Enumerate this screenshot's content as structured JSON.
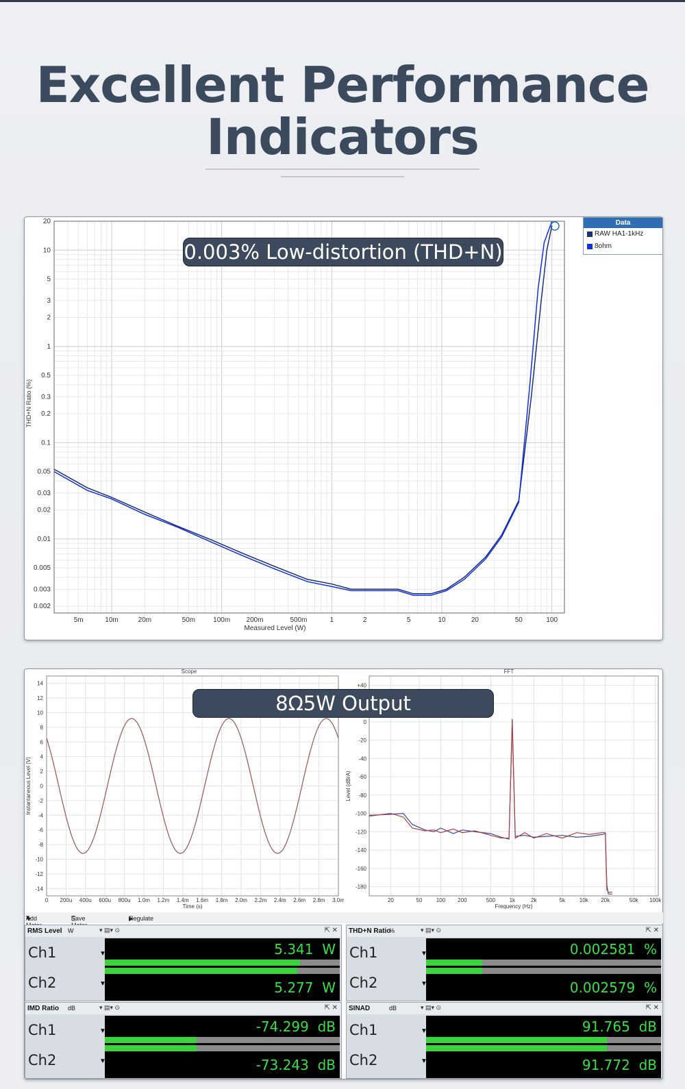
{
  "header": {
    "title_line1": "Excellent Performance",
    "title_line2": "Indicators"
  },
  "thd_panel": {
    "pill": "0.003% Low-distortion (THD+N)",
    "legend": {
      "title": "Data",
      "items": [
        {
          "label": "RAW HA1-1kHz",
          "color": "#1a2e7a"
        },
        {
          "label": "8ohm",
          "color": "#1030e0"
        }
      ]
    }
  },
  "scope_panel": {
    "pill": "8Ω5W Output"
  },
  "toolbar": {
    "add_meter": "Add Meter",
    "save_meter_data": "Save Meter Data",
    "regulate": "Regulate"
  },
  "meters": [
    {
      "title": "RMS Level",
      "unit": "W",
      "ch1_label": "Ch1",
      "ch2_label": "Ch2",
      "ch1_value": "5.341",
      "ch1_unit": "W",
      "ch2_value": "5.277",
      "ch2_unit": "W",
      "ch1_level": 0.83,
      "ch2_level": 0.82
    },
    {
      "title": "THD+N Ratio",
      "unit": "%",
      "ch1_label": "Ch1",
      "ch2_label": "Ch2",
      "ch1_value": "0.002581",
      "ch1_unit": "%",
      "ch2_value": "0.002579",
      "ch2_unit": "%",
      "ch1_level": 0.24,
      "ch2_level": 0.24
    },
    {
      "title": "IMD Ratio",
      "unit": "dB",
      "ch1_label": "Ch1",
      "ch2_label": "Ch2",
      "ch1_value": "-74.299",
      "ch1_unit": "dB",
      "ch2_value": "-73.243",
      "ch2_unit": "dB",
      "ch1_level": 0.39,
      "ch2_level": 0.39
    },
    {
      "title": "SINAD",
      "unit": "dB",
      "ch1_label": "Ch1",
      "ch2_label": "Ch2",
      "ch1_value": "91.765",
      "ch1_unit": "dB",
      "ch2_value": "91.772",
      "ch2_unit": "dB",
      "ch1_level": 0.77,
      "ch2_level": 0.77
    }
  ],
  "chart_data": [
    {
      "type": "line",
      "xlabel": "Measured Level (W)",
      "ylabel": "THD+N Ratio (%)",
      "x_scale": "log",
      "y_scale": "log",
      "xlim": [
        0.003,
        130
      ],
      "ylim": [
        0.0017,
        20
      ],
      "x_ticks": [
        {
          "v": 0.005,
          "label": "5m"
        },
        {
          "v": 0.01,
          "label": "10m"
        },
        {
          "v": 0.02,
          "label": "20m"
        },
        {
          "v": 0.05,
          "label": "50m"
        },
        {
          "v": 0.1,
          "label": "100m"
        },
        {
          "v": 0.2,
          "label": "200m"
        },
        {
          "v": 0.5,
          "label": "500m"
        },
        {
          "v": 1,
          "label": "1"
        },
        {
          "v": 2,
          "label": "2"
        },
        {
          "v": 5,
          "label": "5"
        },
        {
          "v": 10,
          "label": "10"
        },
        {
          "v": 20,
          "label": "20"
        },
        {
          "v": 50,
          "label": "50"
        },
        {
          "v": 100,
          "label": "100"
        }
      ],
      "y_ticks": [
        {
          "v": 20,
          "label": "20"
        },
        {
          "v": 10,
          "label": "10"
        },
        {
          "v": 5,
          "label": "5"
        },
        {
          "v": 3,
          "label": "3"
        },
        {
          "v": 2,
          "label": "2"
        },
        {
          "v": 1,
          "label": "1"
        },
        {
          "v": 0.5,
          "label": "0.5"
        },
        {
          "v": 0.3,
          "label": "0.3"
        },
        {
          "v": 0.2,
          "label": "0.2"
        },
        {
          "v": 0.1,
          "label": "0.1"
        },
        {
          "v": 0.05,
          "label": "0.05"
        },
        {
          "v": 0.03,
          "label": "0.03"
        },
        {
          "v": 0.02,
          "label": "0.02"
        },
        {
          "v": 0.01,
          "label": "0.01"
        },
        {
          "v": 0.005,
          "label": "0.005"
        },
        {
          "v": 0.003,
          "label": "0.003"
        },
        {
          "v": 0.002,
          "label": "0.002"
        }
      ],
      "grid": true,
      "legend_position": "top-right",
      "series": [
        {
          "name": "RAW HA1-1kHz",
          "color": "#1a2e7a",
          "x": [
            0.003,
            0.006,
            0.01,
            0.02,
            0.04,
            0.08,
            0.15,
            0.3,
            0.6,
            1.0,
            1.5,
            2.5,
            4.0,
            5.5,
            8.0,
            11,
            16,
            25,
            35,
            50,
            65,
            80,
            90,
            100
          ],
          "y": [
            0.053,
            0.034,
            0.027,
            0.019,
            0.0135,
            0.0098,
            0.0072,
            0.0052,
            0.0038,
            0.0034,
            0.003,
            0.003,
            0.003,
            0.0027,
            0.0027,
            0.003,
            0.004,
            0.0065,
            0.011,
            0.025,
            0.3,
            3.0,
            10,
            18
          ]
        },
        {
          "name": "8ohm",
          "color": "#1030e0",
          "x": [
            0.003,
            0.006,
            0.01,
            0.02,
            0.04,
            0.08,
            0.15,
            0.3,
            0.6,
            1.0,
            1.5,
            2.5,
            4.0,
            5.5,
            8.0,
            11,
            16,
            25,
            35,
            50,
            63,
            75,
            85,
            100
          ],
          "y": [
            0.05,
            0.032,
            0.026,
            0.018,
            0.0132,
            0.0093,
            0.0068,
            0.0049,
            0.0036,
            0.0032,
            0.0029,
            0.0029,
            0.0029,
            0.0026,
            0.0026,
            0.0029,
            0.0038,
            0.0062,
            0.0105,
            0.024,
            0.4,
            4.0,
            12,
            20
          ]
        }
      ]
    },
    {
      "type": "line",
      "title": "Scope",
      "xlabel": "Time (s)",
      "ylabel": "Instantaneous Level (V)",
      "xlim": [
        0,
        0.003
      ],
      "ylim": [
        -15,
        15
      ],
      "x_ticks": [
        {
          "v": 0,
          "label": "0"
        },
        {
          "v": 0.0002,
          "label": "200u"
        },
        {
          "v": 0.0004,
          "label": "400u"
        },
        {
          "v": 0.0006,
          "label": "600u"
        },
        {
          "v": 0.0008,
          "label": "800u"
        },
        {
          "v": 0.001,
          "label": "1.0m"
        },
        {
          "v": 0.0012,
          "label": "1.2m"
        },
        {
          "v": 0.0014,
          "label": "1.4m"
        },
        {
          "v": 0.0016,
          "label": "1.6m"
        },
        {
          "v": 0.0018,
          "label": "1.8m"
        },
        {
          "v": 0.002,
          "label": "2.0m"
        },
        {
          "v": 0.0022,
          "label": "2.2m"
        },
        {
          "v": 0.0024,
          "label": "2.4m"
        },
        {
          "v": 0.0026,
          "label": "2.6m"
        },
        {
          "v": 0.0028,
          "label": "2.8m"
        },
        {
          "v": 0.003,
          "label": "3.0m"
        }
      ],
      "y_ticks": [
        {
          "v": 14,
          "label": "14"
        },
        {
          "v": 12,
          "label": "12"
        },
        {
          "v": 10,
          "label": "10"
        },
        {
          "v": 8,
          "label": "8"
        },
        {
          "v": 6,
          "label": "6"
        },
        {
          "v": 4,
          "label": "4"
        },
        {
          "v": 2,
          "label": "2"
        },
        {
          "v": 0,
          "label": "0"
        },
        {
          "v": -2,
          "label": "-2"
        },
        {
          "v": -4,
          "label": "-4"
        },
        {
          "v": -6,
          "label": "-6"
        },
        {
          "v": -8,
          "label": "-8"
        },
        {
          "v": -10,
          "label": "-10"
        },
        {
          "v": -12,
          "label": "-12"
        },
        {
          "v": -14,
          "label": "-14"
        }
      ],
      "grid": true,
      "waveform": {
        "amplitude": 9.2,
        "frequency_hz": 1000,
        "phase_deg": 135,
        "color": "#a06060"
      }
    },
    {
      "type": "line",
      "title": "FFT",
      "xlabel": "Frequency (Hz)",
      "ylabel": "Level (dBrA)",
      "x_scale": "log",
      "xlim": [
        10,
        110000
      ],
      "ylim": [
        -190,
        50
      ],
      "x_ticks": [
        {
          "v": 20,
          "label": "20"
        },
        {
          "v": 50,
          "label": "50"
        },
        {
          "v": 100,
          "label": "100"
        },
        {
          "v": 200,
          "label": "200"
        },
        {
          "v": 500,
          "label": "500"
        },
        {
          "v": 1000,
          "label": "1k"
        },
        {
          "v": 2000,
          "label": "2k"
        },
        {
          "v": 5000,
          "label": "5k"
        },
        {
          "v": 10000,
          "label": "10k"
        },
        {
          "v": 20000,
          "label": "20k"
        },
        {
          "v": 50000,
          "label": "50k"
        },
        {
          "v": 100000,
          "label": "100k"
        }
      ],
      "y_ticks": [
        {
          "v": 40,
          "label": "+40"
        },
        {
          "v": 20,
          "label": "+20"
        },
        {
          "v": 0,
          "label": "0"
        },
        {
          "v": -20,
          "label": "-20"
        },
        {
          "v": -40,
          "label": "-40"
        },
        {
          "v": -60,
          "label": "-60"
        },
        {
          "v": -80,
          "label": "-80"
        },
        {
          "v": -100,
          "label": "-100"
        },
        {
          "v": -120,
          "label": "-120"
        },
        {
          "v": -140,
          "label": "-140"
        },
        {
          "v": -160,
          "label": "-160"
        },
        {
          "v": -180,
          "label": "-180"
        }
      ],
      "grid": true,
      "series": [
        {
          "name": "",
          "color": "#3a4a9a",
          "x": [
            10,
            20,
            30,
            40,
            60,
            80,
            100,
            150,
            200,
            300,
            500,
            700,
            900,
            1000,
            1100,
            1500,
            2000,
            3000,
            5000,
            8000,
            12000,
            18000,
            20000,
            21000,
            22000,
            25000
          ],
          "y": [
            -102,
            -101,
            -100,
            -112,
            -118,
            -120,
            -116,
            -122,
            -118,
            -120,
            -122,
            -126,
            -128,
            3,
            -125,
            -124,
            -126,
            -125,
            -124,
            -126,
            -125,
            -123,
            -122,
            -178,
            -188,
            -188
          ]
        },
        {
          "name": "",
          "color": "#b04040",
          "x": [
            10,
            20,
            30,
            40,
            60,
            80,
            100,
            150,
            200,
            300,
            500,
            700,
            900,
            1000,
            1100,
            1500,
            2000,
            3000,
            5000,
            8000,
            12000,
            18000,
            20000,
            21000,
            22000,
            25000
          ],
          "y": [
            -103,
            -100,
            -104,
            -116,
            -119,
            -118,
            -121,
            -117,
            -121,
            -119,
            -124,
            -127,
            -127,
            0,
            -127,
            -121,
            -127,
            -122,
            -127,
            -121,
            -123,
            -121,
            -121,
            -183,
            -186,
            -186
          ]
        }
      ]
    }
  ]
}
